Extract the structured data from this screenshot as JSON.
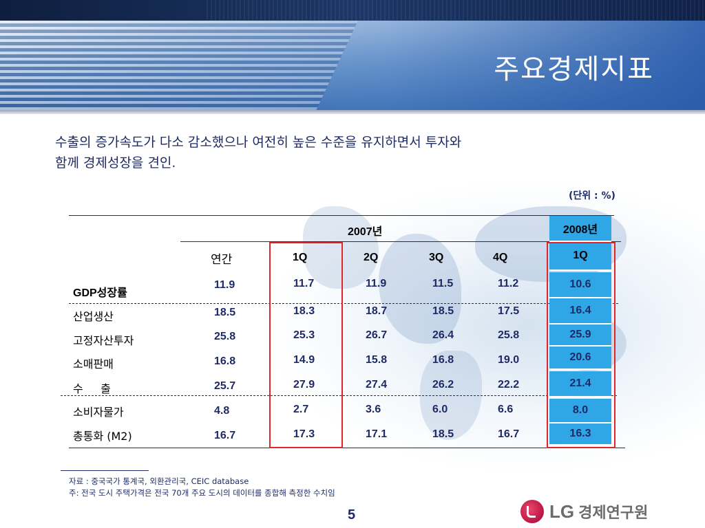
{
  "slide": {
    "title": "주요경제지표",
    "subtitle_line1": "수출의 증가속도가 다소 감소했으나 여전히 높은 수준을 유지하면서 투자와",
    "subtitle_line2": "함께 경제성장을 견인.",
    "unit": "(단위 : %)",
    "page_number": "5"
  },
  "table": {
    "year_2007": "2007년",
    "year_2008": "2008년",
    "col_annual": "연간",
    "quarters": [
      "1Q",
      "2Q",
      "3Q",
      "4Q"
    ],
    "q2008": "1Q",
    "rows": [
      {
        "label": "GDP성장률",
        "annual": "11.9",
        "q1": "11.7",
        "q2": "11.9",
        "q3": "11.5",
        "q4": "11.2",
        "q2008": "10.6"
      },
      {
        "label": "산업생산",
        "annual": "18.5",
        "q1": "18.3",
        "q2": "18.7",
        "q3": "18.5",
        "q4": "17.5",
        "q2008": "16.4"
      },
      {
        "label": "고정자산투자",
        "annual": "25.8",
        "q1": "25.3",
        "q2": "26.7",
        "q3": "26.4",
        "q4": "25.8",
        "q2008": "25.9"
      },
      {
        "label": "소매판매",
        "annual": "16.8",
        "q1": "14.9",
        "q2": "15.8",
        "q3": "16.8",
        "q4": "19.0",
        "q2008": "20.6"
      },
      {
        "label": "수     출",
        "annual": "25.7",
        "q1": "27.9",
        "q2": "27.4",
        "q3": "26.2",
        "q4": "22.2",
        "q2008": "21.4"
      },
      {
        "label": "소비자물가",
        "annual": "4.8",
        "q1": "2.7",
        "q2": "3.6",
        "q3": "6.0",
        "q4": "6.6",
        "q2008": "8.0"
      },
      {
        "label": "총통화 (M2)",
        "annual": "16.7",
        "q1": "17.3",
        "q2": "17.1",
        "q3": "18.5",
        "q4": "16.7",
        "q2008": "16.3"
      }
    ]
  },
  "footnotes": {
    "source": "자료 : 중국국가 통계국, 외환관리국, CEIC database",
    "note": "주: 전국 도시 주택가격은 전국 70개 주요 도시의 데이터를 종합해 측정한 수치임"
  },
  "logo": {
    "brand": "LG",
    "name": "경제연구원"
  },
  "colors": {
    "accent_blue": "#2fa6e6",
    "highlight_red": "#e0242a",
    "text_navy": "#1e2a66"
  }
}
